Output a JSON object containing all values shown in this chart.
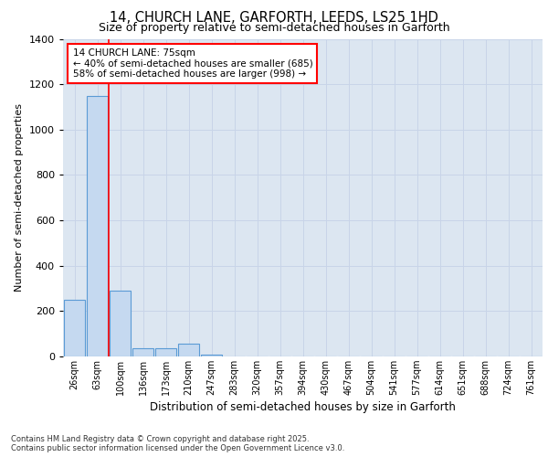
{
  "title_line1": "14, CHURCH LANE, GARFORTH, LEEDS, LS25 1HD",
  "title_line2": "Size of property relative to semi-detached houses in Garforth",
  "xlabel": "Distribution of semi-detached houses by size in Garforth",
  "ylabel": "Number of semi-detached properties",
  "categories": [
    "26sqm",
    "63sqm",
    "100sqm",
    "136sqm",
    "173sqm",
    "210sqm",
    "247sqm",
    "283sqm",
    "320sqm",
    "357sqm",
    "394sqm",
    "430sqm",
    "467sqm",
    "504sqm",
    "541sqm",
    "577sqm",
    "614sqm",
    "651sqm",
    "688sqm",
    "724sqm",
    "761sqm"
  ],
  "values": [
    250,
    1150,
    290,
    35,
    35,
    55,
    10,
    0,
    0,
    0,
    0,
    0,
    0,
    0,
    0,
    0,
    0,
    0,
    0,
    0,
    0
  ],
  "bar_color": "#c5d9f0",
  "bar_edge_color": "#5b9bd5",
  "grid_color": "#c8d4e8",
  "plot_bg_color": "#dce6f1",
  "red_line_x": 1.5,
  "annotation_title": "14 CHURCH LANE: 75sqm",
  "annotation_line2": "← 40% of semi-detached houses are smaller (685)",
  "annotation_line3": "58% of semi-detached houses are larger (998) →",
  "ylim": [
    0,
    1400
  ],
  "yticks": [
    0,
    200,
    400,
    600,
    800,
    1000,
    1200,
    1400
  ],
  "footer_line1": "Contains HM Land Registry data © Crown copyright and database right 2025.",
  "footer_line2": "Contains public sector information licensed under the Open Government Licence v3.0."
}
